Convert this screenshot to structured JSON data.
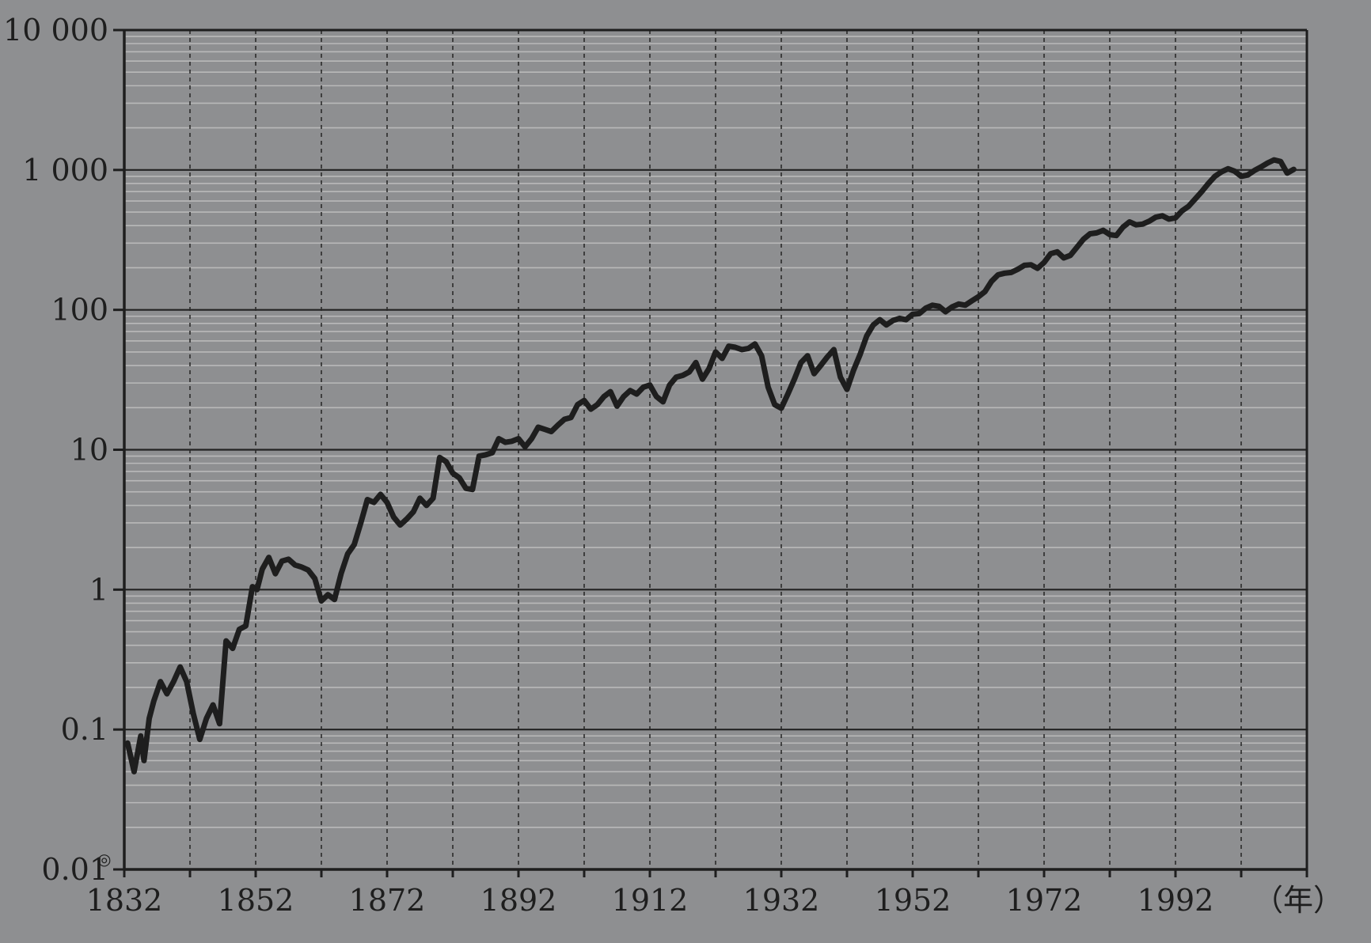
{
  "chart_data": {
    "type": "line",
    "title": "",
    "xlabel": "（年）",
    "ylabel": "",
    "y_scale": "log",
    "ylim": [
      0.01,
      10000
    ],
    "xlim": [
      1832,
      2012
    ],
    "grid": true,
    "x_ticks": [
      1832,
      1852,
      1872,
      1892,
      1912,
      1932,
      1952,
      1972,
      1992
    ],
    "x_tick_labels": [
      "1832",
      "1852",
      "1872",
      "1892",
      "1912",
      "1932",
      "1952",
      "1972",
      "1992"
    ],
    "y_ticks": [
      0.01,
      0.1,
      1,
      10,
      100,
      1000,
      10000
    ],
    "y_tick_labels": [
      "0.01",
      "0.1",
      "1",
      "10",
      "100",
      "1 000",
      "10 000"
    ],
    "y_bottom_marker": "◎",
    "colors": {
      "background": "#8e8f91",
      "line": "#1e1e1e",
      "grid_major": "#222222",
      "grid_minor": "#b8b8b8"
    },
    "series": [
      {
        "x": [
          1832.5,
          1833.5,
          1834.5,
          1835,
          1835.8,
          1836.5,
          1837.5,
          1838.5,
          1839.5,
          1840.5,
          1841.5,
          1842.5,
          1843.5,
          1844.5,
          1845.5,
          1846.5,
          1847.5,
          1848.5,
          1849.5,
          1850.5,
          1851.5,
          1852.2,
          1853,
          1854,
          1855,
          1856,
          1857,
          1858,
          1859,
          1860,
          1861,
          1862,
          1863,
          1864,
          1865,
          1866,
          1867,
          1868,
          1869,
          1870,
          1871,
          1872,
          1873,
          1874,
          1875,
          1876,
          1877,
          1878,
          1879,
          1880,
          1881,
          1882,
          1883,
          1884,
          1885,
          1886,
          1887,
          1888,
          1889,
          1890,
          1891,
          1892,
          1893,
          1894,
          1895,
          1896,
          1897,
          1898,
          1899,
          1900,
          1901,
          1902,
          1903,
          1904,
          1905,
          1906,
          1907,
          1908,
          1909,
          1910,
          1911,
          1912,
          1913,
          1914,
          1915,
          1916,
          1917,
          1918,
          1919,
          1920,
          1921,
          1922,
          1923,
          1924,
          1925,
          1926,
          1927,
          1928,
          1929,
          1930,
          1931,
          1932,
          1933,
          1934,
          1935,
          1936,
          1937,
          1938,
          1939,
          1940,
          1941,
          1942,
          1943,
          1944,
          1945,
          1946,
          1947,
          1948,
          1949,
          1950,
          1951,
          1952,
          1953,
          1954,
          1955,
          1956,
          1957,
          1958,
          1959,
          1960,
          1961,
          1962,
          1963,
          1964,
          1965,
          1966,
          1967,
          1968,
          1969,
          1970,
          1971,
          1972,
          1973,
          1974,
          1975,
          1976,
          1977,
          1978,
          1979,
          1980,
          1981,
          1982,
          1983,
          1984,
          1985,
          1986,
          1987,
          1988,
          1989,
          1990,
          1991,
          1992,
          1993,
          1994,
          1995,
          1996,
          1997,
          1998,
          1999,
          2000,
          2001,
          2002,
          2003,
          2004,
          2005,
          2006,
          2007,
          2008,
          2009,
          2010
        ],
        "values": [
          0.08,
          0.05,
          0.09,
          0.06,
          0.12,
          0.16,
          0.22,
          0.18,
          0.22,
          0.28,
          0.22,
          0.13,
          0.085,
          0.12,
          0.15,
          0.11,
          0.43,
          0.38,
          0.52,
          0.55,
          1.05,
          1.0,
          1.4,
          1.7,
          1.3,
          1.6,
          1.65,
          1.5,
          1.45,
          1.38,
          1.2,
          0.83,
          0.92,
          0.85,
          1.3,
          1.8,
          2.1,
          3.0,
          4.4,
          4.2,
          4.8,
          4.2,
          3.3,
          2.9,
          3.2,
          3.6,
          4.5,
          4.0,
          4.5,
          8.8,
          8.2,
          6.8,
          6.3,
          5.3,
          5.2,
          9.0,
          9.2,
          9.5,
          12.0,
          11.3,
          11.5,
          12.0,
          10.5,
          12.0,
          14.5,
          14.0,
          13.5,
          15.0,
          16.5,
          17.0,
          21.0,
          22.5,
          19.5,
          21.0,
          24.0,
          26.0,
          20.5,
          24.0,
          26.5,
          25.0,
          28.0,
          29.0,
          24.0,
          22.0,
          29.0,
          33.0,
          34.0,
          36.0,
          42.0,
          32.0,
          38.0,
          50.0,
          45.0,
          55.0,
          54.0,
          52.0,
          53.0,
          57.0,
          47.0,
          28.0,
          21.0,
          19.8,
          25.0,
          32.0,
          42.0,
          47.0,
          35.0,
          40.0,
          46.0,
          52.0,
          33.0,
          27.0,
          37.0,
          48.0,
          65.0,
          78.0,
          85.0,
          78.0,
          84.0,
          87.0,
          85.0,
          93.0,
          94.0,
          103.0,
          108.0,
          106.0,
          97.0,
          105.0,
          110.0,
          108.0,
          116.0,
          124.0,
          135.0,
          160.0,
          178.0,
          183.0,
          185.0,
          195.0,
          208.0,
          210.0,
          198.0,
          218.0,
          252.0,
          260.0,
          235.0,
          245.0,
          280.0,
          320.0,
          350.0,
          355.0,
          370.0,
          345.0,
          340.0,
          390.0,
          425.0,
          405.0,
          410.0,
          430.0,
          460.0,
          470.0,
          445.0,
          455.0,
          510.0,
          550.0,
          620.0,
          700.0,
          800.0,
          900.0,
          970.0,
          1020.0,
          980.0,
          900.0,
          920.0,
          990.0,
          1050.0,
          1120.0,
          1180.0,
          1150.0,
          950.0,
          1010.0
        ]
      }
    ]
  }
}
